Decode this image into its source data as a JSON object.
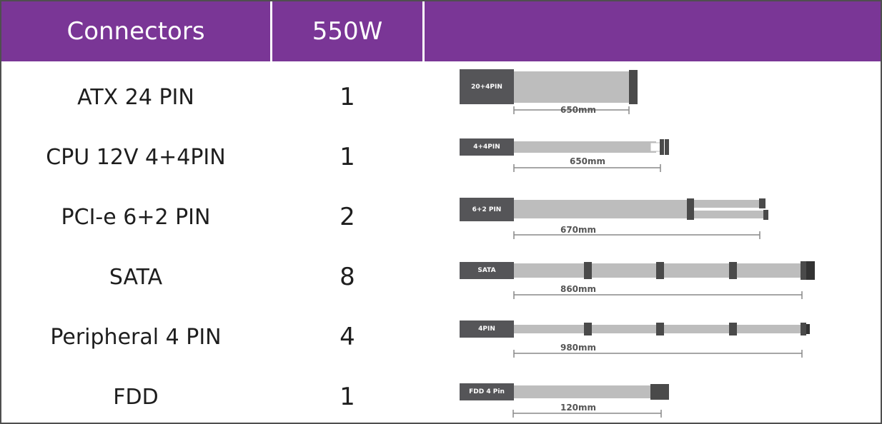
{
  "header": {
    "col_connectors": "Connectors",
    "col_watt": "550W"
  },
  "colors": {
    "header_bg": "#7a3696",
    "plug": "#555558",
    "cable": "#bdbdbd",
    "connector": "#4a4a4a"
  },
  "rows": [
    {
      "name": "ATX 24 PIN",
      "qty": "1",
      "plug": "20+4PIN",
      "length": "650mm"
    },
    {
      "name": "CPU 12V 4+4PIN",
      "qty": "1",
      "plug": "4+4PIN",
      "length": "650mm"
    },
    {
      "name": "PCI-e 6+2 PIN",
      "qty": "2",
      "plug": "6+2 PIN",
      "length": "670mm"
    },
    {
      "name": "SATA",
      "qty": "8",
      "plug": "SATA",
      "length": "860mm"
    },
    {
      "name": "Peripheral 4 PIN",
      "qty": "4",
      "plug": "4PIN",
      "length": "980mm"
    },
    {
      "name": "FDD",
      "qty": "1",
      "plug": "FDD 4 Pin",
      "length": "120mm"
    }
  ]
}
